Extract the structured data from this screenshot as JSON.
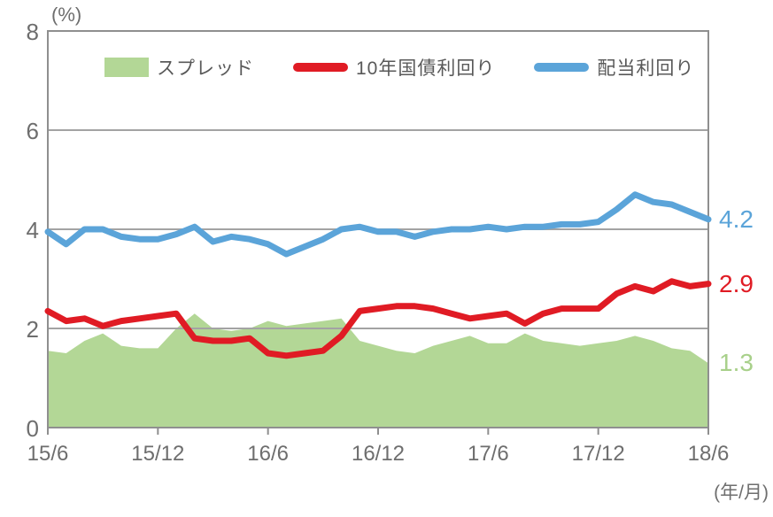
{
  "chart_data": {
    "type": "line",
    "title": "",
    "ylabel": "(%)",
    "xlabel": "(年/月)",
    "ylim": [
      0,
      8
    ],
    "y_tick_values": [
      8,
      6,
      4,
      2,
      0
    ],
    "y_tick_labels": [
      "8",
      "6",
      "4",
      "2",
      "0"
    ],
    "gridline_values": [
      2,
      4,
      6
    ],
    "grid": true,
    "legend_position": "top-center",
    "n_points": 37,
    "x_range_note": "monthly points from 15/6 to 18/6",
    "x_tick_labels": [
      "15/6",
      "15/12",
      "16/6",
      "16/12",
      "17/6",
      "17/12",
      "18/6"
    ],
    "x_tick_indices": [
      0,
      6,
      12,
      18,
      24,
      30,
      36
    ],
    "series": [
      {
        "name": "スプレッド",
        "type": "area",
        "color": "#b3d796",
        "end_label": "1.3",
        "end_label_color": "#a8d08a",
        "values": [
          1.55,
          1.5,
          1.75,
          1.9,
          1.65,
          1.6,
          1.6,
          2.0,
          2.3,
          2.0,
          1.95,
          2.0,
          2.15,
          2.05,
          2.1,
          2.15,
          2.2,
          1.75,
          1.65,
          1.55,
          1.5,
          1.65,
          1.75,
          1.85,
          1.7,
          1.7,
          1.9,
          1.75,
          1.7,
          1.65,
          1.7,
          1.75,
          1.85,
          1.75,
          1.6,
          1.55,
          1.3
        ]
      },
      {
        "name": "10年国債利回り",
        "type": "line",
        "color": "#e01b24",
        "end_label": "2.9",
        "end_label_color": "#e01b24",
        "values": [
          2.35,
          2.15,
          2.2,
          2.05,
          2.15,
          2.2,
          2.25,
          2.3,
          1.8,
          1.75,
          1.75,
          1.8,
          1.5,
          1.45,
          1.5,
          1.55,
          1.85,
          2.35,
          2.4,
          2.45,
          2.45,
          2.4,
          2.3,
          2.2,
          2.25,
          2.3,
          2.1,
          2.3,
          2.4,
          2.4,
          2.4,
          2.7,
          2.85,
          2.75,
          2.95,
          2.85,
          2.9
        ]
      },
      {
        "name": "配当利回り",
        "type": "line",
        "color": "#5ba4d9",
        "end_label": "4.2",
        "end_label_color": "#5ba4d9",
        "values": [
          3.95,
          3.7,
          4.0,
          4.0,
          3.85,
          3.8,
          3.8,
          3.9,
          4.05,
          3.75,
          3.85,
          3.8,
          3.7,
          3.5,
          3.65,
          3.8,
          4.0,
          4.05,
          3.95,
          3.95,
          3.85,
          3.95,
          4.0,
          4.0,
          4.05,
          4.0,
          4.05,
          4.05,
          4.1,
          4.1,
          4.15,
          4.4,
          4.7,
          4.55,
          4.5,
          4.35,
          4.2
        ]
      }
    ],
    "colors": {
      "grid": "#a3a3a3",
      "axis": "#8f8f8f",
      "tick_text": "#6e6e6e",
      "legend_text": "#595959",
      "background": "#ffffff"
    }
  }
}
